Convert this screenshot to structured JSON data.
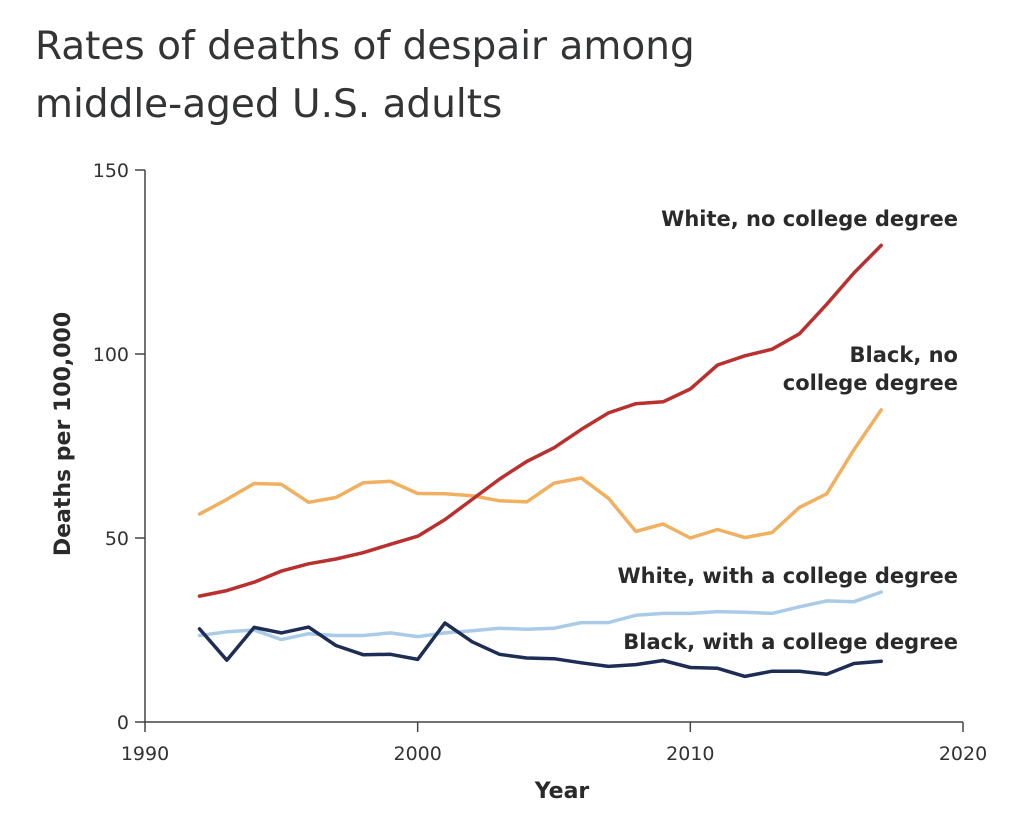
{
  "chart_data": {
    "type": "line",
    "title_lines": [
      "Rates of deaths of despair among",
      "middle-aged U.S. adults"
    ],
    "xlabel": "Year",
    "ylabel": "Deaths per 100,000",
    "xlim": [
      1990,
      2020
    ],
    "ylim": [
      0,
      150
    ],
    "xticks": [
      1990,
      2000,
      2010,
      2020
    ],
    "yticks": [
      0,
      50,
      100,
      150
    ],
    "grid": false,
    "x": [
      1992,
      1993,
      1994,
      1995,
      1996,
      1997,
      1998,
      1999,
      2000,
      2001,
      2002,
      2003,
      2004,
      2005,
      2006,
      2007,
      2008,
      2009,
      2010,
      2011,
      2012,
      2013,
      2014,
      2015,
      2016,
      2017
    ],
    "series": [
      {
        "name": "White, no college degree",
        "label_lines": [
          "White, no college degree"
        ],
        "color": "#b9302f",
        "values": [
          34.2,
          35.7,
          38.0,
          41.0,
          43.0,
          44.3,
          46.0,
          48.3,
          50.5,
          55.0,
          60.5,
          66.0,
          70.8,
          74.5,
          79.5,
          84.0,
          86.5,
          87.0,
          90.5,
          97.0,
          99.5,
          101.3,
          105.5,
          113.5,
          122.0,
          129.5
        ]
      },
      {
        "name": "Black, no college degree",
        "label_lines": [
          "Black, no",
          "college degree"
        ],
        "color": "#f0b060",
        "values": [
          56.5,
          60.5,
          64.8,
          64.6,
          59.7,
          61.0,
          65.0,
          65.4,
          62.1,
          62.0,
          61.5,
          60.1,
          59.8,
          64.9,
          66.3,
          60.8,
          51.8,
          53.8,
          50.0,
          52.3,
          50.1,
          51.5,
          58.3,
          62.0,
          74.0,
          84.8
        ]
      },
      {
        "name": "White, with a college degree",
        "label_lines": [
          "White, with a college degree"
        ],
        "color": "#a9cbe8",
        "values": [
          23.5,
          24.5,
          25.0,
          22.4,
          24.0,
          23.5,
          23.5,
          24.2,
          23.2,
          24.2,
          24.8,
          25.5,
          25.2,
          25.5,
          27.0,
          27.0,
          29.0,
          29.5,
          29.5,
          30.0,
          29.8,
          29.5,
          31.3,
          32.9,
          32.7,
          35.3
        ]
      },
      {
        "name": "Black, with a college degree",
        "label_lines": [
          "Black, with a college degree"
        ],
        "color": "#1e2d55",
        "values": [
          25.3,
          16.8,
          25.7,
          24.2,
          25.8,
          20.8,
          18.3,
          18.4,
          17.0,
          26.9,
          21.8,
          18.4,
          17.4,
          17.2,
          16.1,
          15.1,
          15.6,
          16.7,
          14.8,
          14.6,
          12.4,
          13.8,
          13.8,
          13.0,
          15.9,
          16.5
        ]
      }
    ]
  }
}
